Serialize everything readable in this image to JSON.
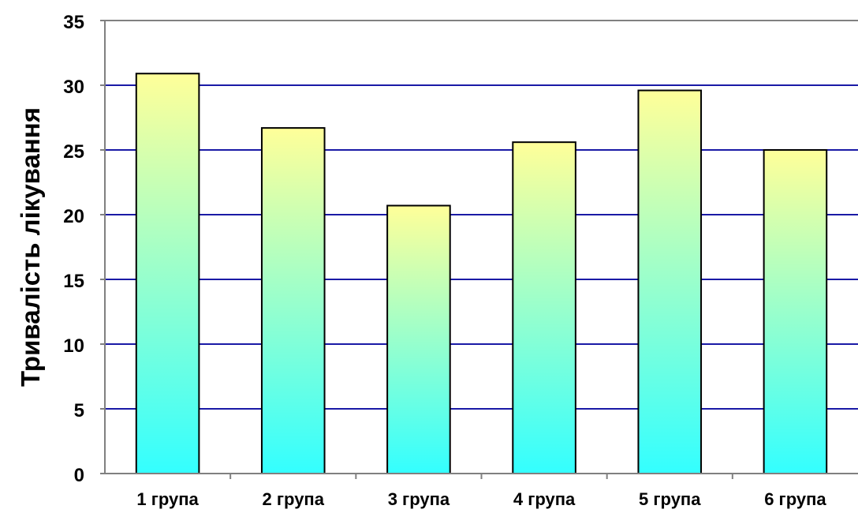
{
  "chart_data": {
    "type": "bar",
    "title": "",
    "xlabel": "",
    "ylabel": "Тривалість лікування",
    "categories": [
      "1 група",
      "2 група",
      "3 група",
      "4 група",
      "5 група",
      "6 група"
    ],
    "values": [
      30.9,
      26.7,
      20.7,
      25.6,
      29.6,
      25.0
    ],
    "ylim": [
      0,
      35
    ],
    "yticks": [
      "0",
      "5",
      "10",
      "15",
      "20",
      "25",
      "30",
      "35"
    ],
    "grid": true,
    "legend": "none",
    "colors": {
      "bar_top": "#ffff99",
      "bar_bottom": "#33ffff",
      "bar_outline": "#000000",
      "gridline": "#1a1aa6",
      "axis": "#808080",
      "plot_border": "#808080"
    }
  }
}
